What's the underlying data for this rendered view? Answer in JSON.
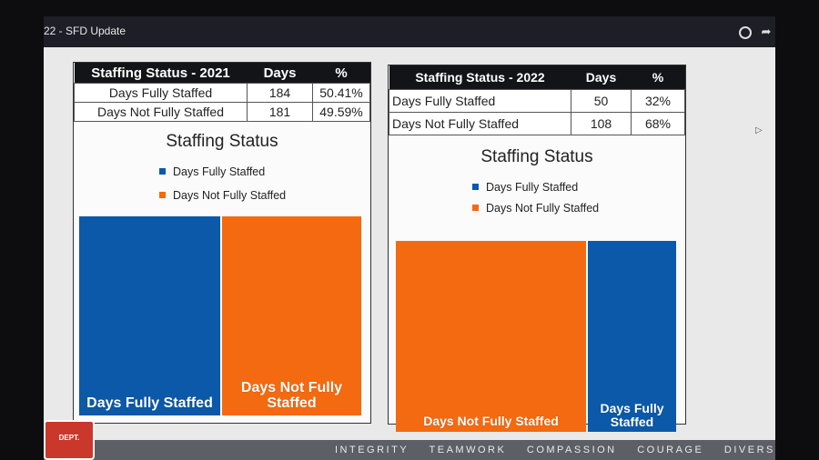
{
  "window": {
    "title": "22 - SFD Update"
  },
  "icons": [
    "clock-icon",
    "share-arrow-icon",
    "fire-dept-logo",
    "cursor-icon"
  ],
  "colors": {
    "fully": "#0b59a8",
    "not_fully": "#f46a10"
  },
  "footer": {
    "values": [
      "INTEGRITY",
      "TEAMWORK",
      "COMPASSION",
      "COURAGE",
      "DIVERSITY"
    ],
    "logo_text": "DEPT."
  },
  "panels": [
    {
      "table": {
        "headers": [
          "Staffing Status - 2021",
          "Days",
          "%"
        ],
        "rows": [
          [
            "Days Fully Staffed",
            "184",
            "50.41%"
          ],
          [
            "Days Not Fully Staffed",
            "181",
            "49.59%"
          ]
        ]
      }
    },
    {
      "table": {
        "headers": [
          "Staffing Status - 2022",
          "Days",
          "%"
        ],
        "rows": [
          [
            "Days Fully Staffed",
            "50",
            "32%"
          ],
          [
            "Days Not Fully Staffed",
            "108",
            "68%"
          ]
        ]
      }
    }
  ],
  "chart_data": [
    {
      "type": "treemap",
      "title": "Staffing Status",
      "legend": [
        "Days Fully Staffed",
        "Days Not Fully Staffed"
      ],
      "legend_position": "top",
      "segments": [
        {
          "label": "Days Fully Staffed",
          "value": 184,
          "color": "#0b59a8"
        },
        {
          "label": "Days Not Fully Staffed",
          "value": 181,
          "color": "#f46a10"
        }
      ]
    },
    {
      "type": "treemap",
      "title": "Staffing Status",
      "legend": [
        "Days Fully Staffed",
        "Days Not Fully Staffed"
      ],
      "legend_position": "top",
      "segments": [
        {
          "label": "Days Not Fully Staffed",
          "value": 108,
          "color": "#f46a10"
        },
        {
          "label": "Days Fully Staffed",
          "value": 50,
          "color": "#0b59a8"
        }
      ]
    }
  ]
}
